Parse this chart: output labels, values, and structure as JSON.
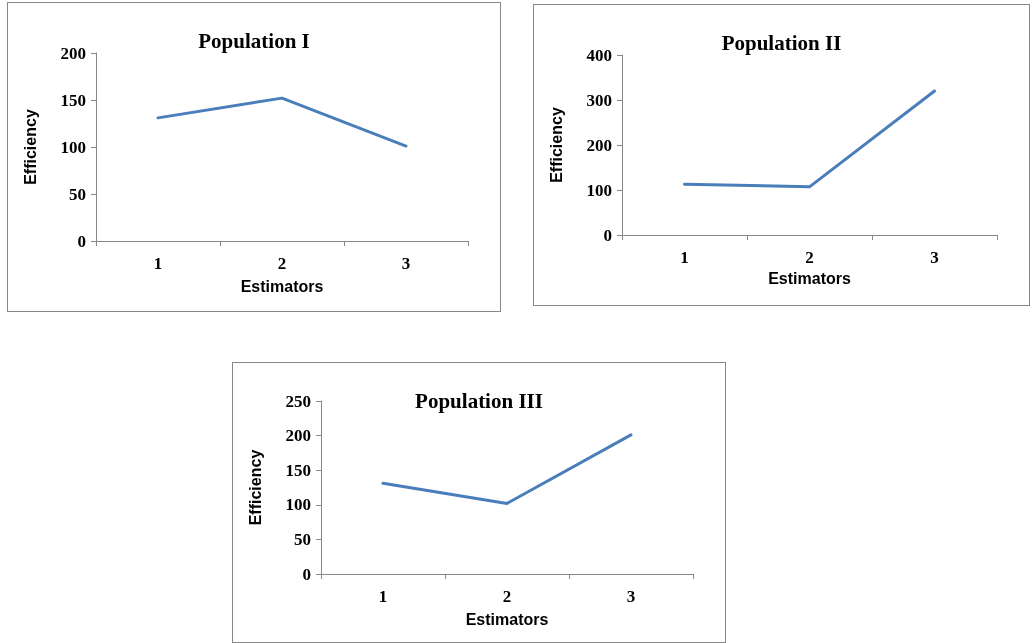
{
  "chart_data": [
    {
      "type": "line",
      "title": "Population I",
      "xlabel": "Estimators",
      "ylabel": "Efficiency",
      "categories": [
        "1",
        "2",
        "3"
      ],
      "series": [
        {
          "color": "#4a7ebb",
          "values": [
            131,
            152,
            101
          ]
        }
      ],
      "ylim": [
        0,
        200
      ],
      "yticks": [
        0,
        50,
        100,
        150,
        200
      ],
      "grid": false,
      "marker": "none",
      "line_style": "solid"
    },
    {
      "type": "line",
      "title": "Population II",
      "xlabel": "Estimators",
      "ylabel": "Efficiency",
      "categories": [
        "1",
        "2",
        "3"
      ],
      "series": [
        {
          "color": "#4a7ebb",
          "values": [
            113,
            107,
            320
          ]
        }
      ],
      "ylim": [
        0,
        400
      ],
      "yticks": [
        0,
        100,
        200,
        300,
        400
      ],
      "grid": false,
      "marker": "none",
      "line_style": "solid"
    },
    {
      "type": "line",
      "title": "Population III",
      "xlabel": "Estimators",
      "ylabel": "Efficiency",
      "categories": [
        "1",
        "2",
        "3"
      ],
      "series": [
        {
          "color": "#4a7ebb",
          "values": [
            131,
            102,
            201
          ]
        }
      ],
      "ylim": [
        0,
        250
      ],
      "yticks": [
        0,
        50,
        100,
        150,
        200,
        250
      ],
      "grid": false,
      "marker": "none",
      "line_style": "solid"
    }
  ]
}
